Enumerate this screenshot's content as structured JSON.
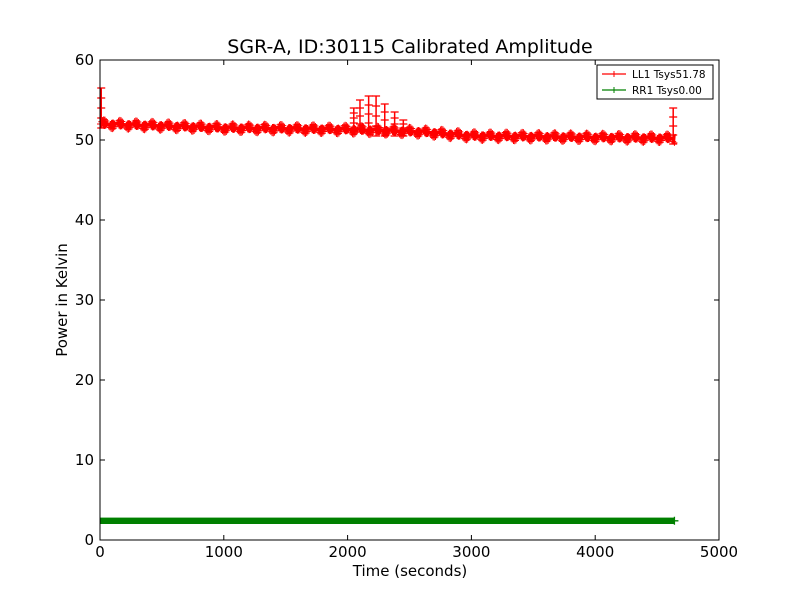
{
  "chart_data": {
    "type": "line",
    "title": "SGR-A, ID:30115 Calibrated Amplitude",
    "xlabel": "Time (seconds)",
    "ylabel": "Power in Kelvin",
    "xlim": [
      0,
      5000
    ],
    "ylim": [
      0,
      60
    ],
    "xticks": [
      "0",
      "1000",
      "2000",
      "3000",
      "4000",
      "5000"
    ],
    "yticks": [
      "0",
      "10",
      "20",
      "30",
      "40",
      "50",
      "60"
    ],
    "grid": false,
    "legend_position": "top-right",
    "series": [
      {
        "name": "LL1 Tsys51.78",
        "color": "#ff0000",
        "marker": "+",
        "values": {
          "x_start": 0,
          "x_end": 4640,
          "baseline": [
            [
              0,
              52.0
            ],
            [
              1000,
              51.5
            ],
            [
              2000,
              51.3
            ],
            [
              2600,
              51.0
            ],
            [
              3000,
              50.5
            ],
            [
              4640,
              50.2
            ]
          ],
          "oscillation_amplitude": 0.6,
          "oscillation_period_seconds": 130,
          "excursions": [
            {
              "x": 10,
              "y_min": 51.5,
              "y_max": 56.5
            },
            {
              "x": 2050,
              "y_min": 51.5,
              "y_max": 54.0
            },
            {
              "x": 2100,
              "y_min": 51.0,
              "y_max": 55.0
            },
            {
              "x": 2170,
              "y_min": 51.0,
              "y_max": 55.5
            },
            {
              "x": 2230,
              "y_min": 50.5,
              "y_max": 55.5
            },
            {
              "x": 2300,
              "y_min": 50.5,
              "y_max": 54.5
            },
            {
              "x": 2380,
              "y_min": 50.5,
              "y_max": 53.5
            },
            {
              "x": 2450,
              "y_min": 50.5,
              "y_max": 52.5
            },
            {
              "x": 4630,
              "y_min": 49.5,
              "y_max": 54.0
            }
          ]
        }
      },
      {
        "name": "RR1 Tsys0.00",
        "color": "#008000",
        "marker": "+",
        "values": {
          "x_start": 0,
          "x_end": 4640,
          "y_min": 2.0,
          "y_max": 2.8
        }
      }
    ]
  }
}
